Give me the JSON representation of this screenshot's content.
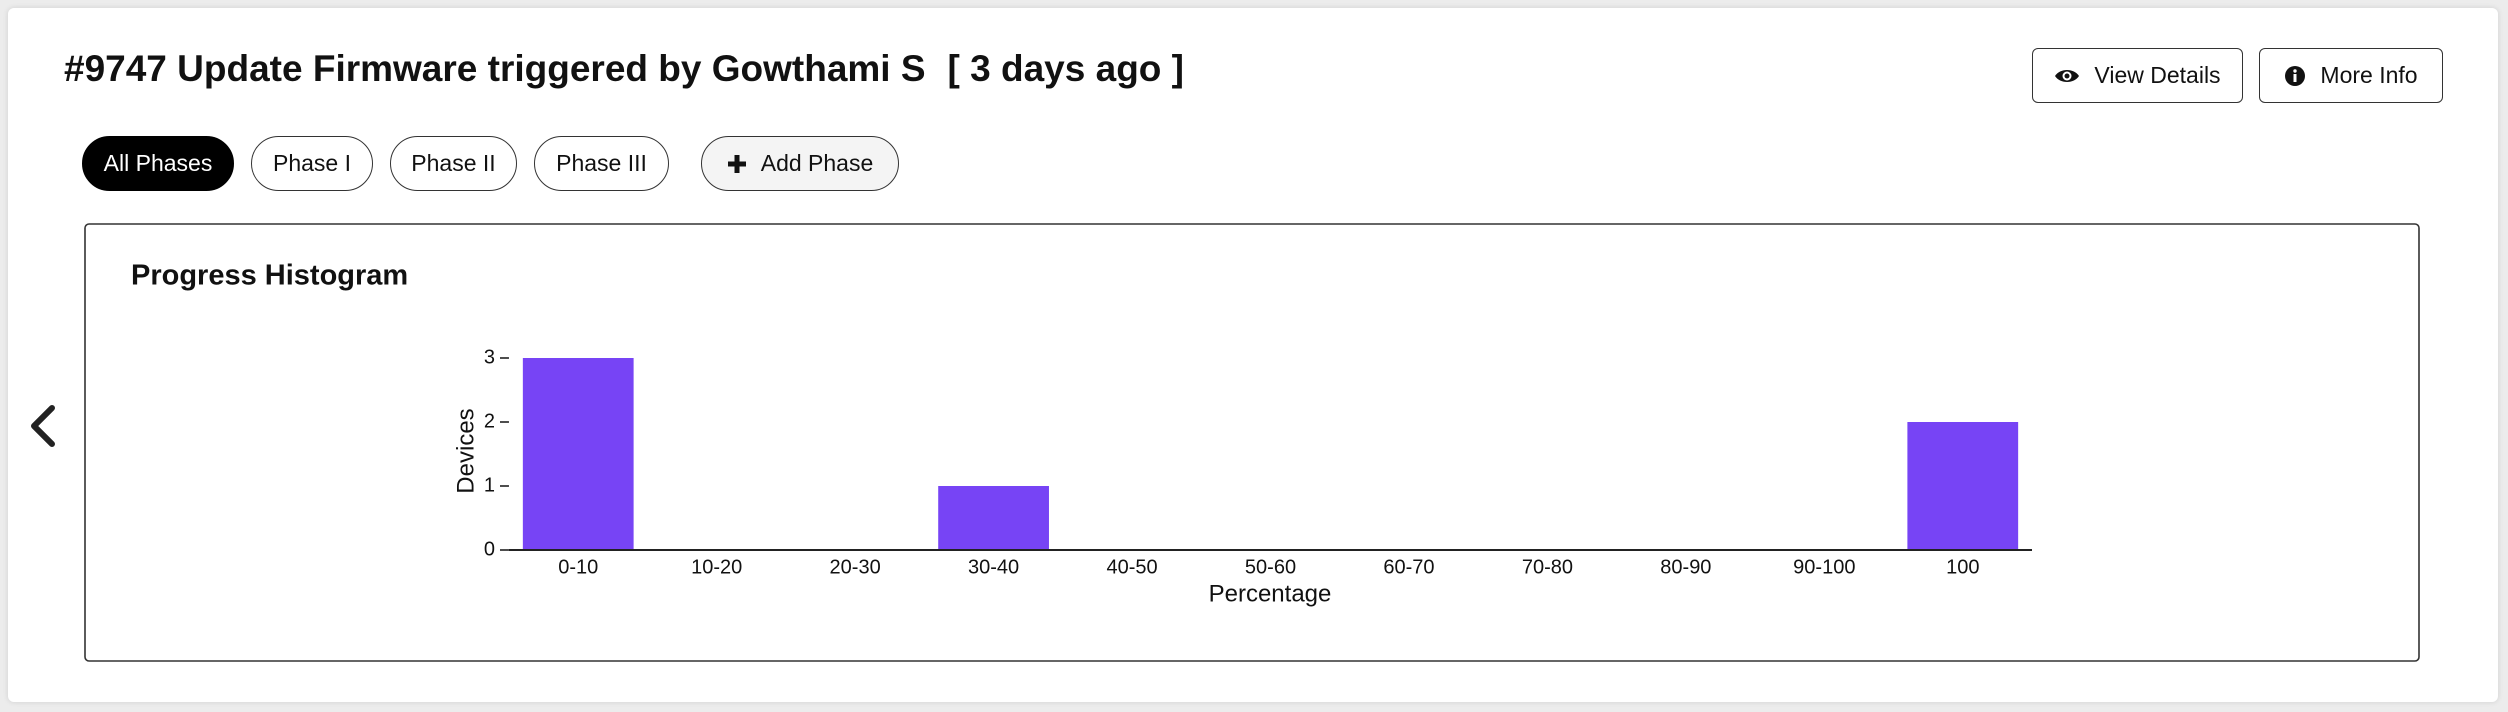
{
  "header": {
    "title": "#9747 Update Firmware triggered by Gowthami S",
    "time": "[ 3 days ago ]",
    "buttons": [
      "View Details",
      "More Info"
    ]
  },
  "phases": [
    "All Phases",
    "Phase I",
    "Phase II",
    "Phase III"
  ],
  "add_phase": "Add Phase",
  "chart_data": {
    "type": "bar",
    "title": "Progress Histogram",
    "categories": [
      "0-10",
      "10-20",
      "20-30",
      "30-40",
      "40-50",
      "50-60",
      "60-70",
      "70-80",
      "80-90",
      "90-100",
      "100"
    ],
    "values": [
      3,
      0,
      0,
      1,
      0,
      0,
      0,
      0,
      0,
      0,
      2
    ],
    "color": "#7744f5",
    "x_label": "Percentage",
    "y_label": "Devices",
    "ylim": [
      0,
      3
    ],
    "yticks": [
      0,
      1,
      2,
      3
    ],
    "grid": false
  }
}
